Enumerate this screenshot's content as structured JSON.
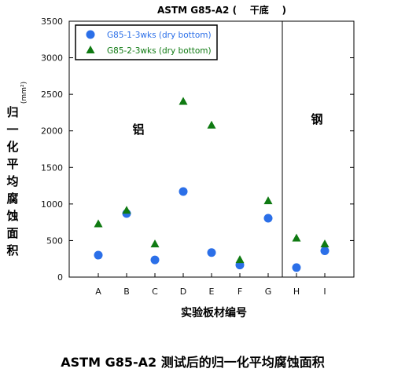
{
  "chart_data": {
    "type": "scatter",
    "title": "ASTM G85-A2 (    干底    )",
    "caption": "ASTM G85-A2 测试后的归一化平均腐蚀面积",
    "xlabel": "实验板材编号",
    "ylabel_chars": [
      "归",
      "一",
      "化",
      "平",
      "均",
      "腐",
      "蚀",
      "面",
      "积"
    ],
    "ylabel_unit": "(mm²)",
    "categories": [
      "A",
      "B",
      "C",
      "D",
      "E",
      "F",
      "G",
      "H",
      "I"
    ],
    "ylim": [
      0,
      3500
    ],
    "yticks": [
      0,
      500,
      1000,
      1500,
      2000,
      2500,
      3000,
      3500
    ],
    "grid": false,
    "legend_position": "top-left",
    "regions": [
      {
        "label": "铝",
        "categories": [
          "A",
          "B",
          "C",
          "D",
          "E",
          "F",
          "G"
        ]
      },
      {
        "label": "钢",
        "categories": [
          "H",
          "I"
        ]
      }
    ],
    "series": [
      {
        "name": "G85-1-3wks (dry bottom)",
        "marker": "circle",
        "color": "#2b6fe8",
        "values": [
          300,
          870,
          235,
          1170,
          335,
          165,
          805,
          130,
          360
        ]
      },
      {
        "name": "G85-2-3wks (dry bottom)",
        "marker": "triangle",
        "color": "#0f7a12",
        "values": [
          725,
          910,
          450,
          2400,
          2075,
          235,
          1040,
          530,
          450
        ]
      }
    ]
  }
}
